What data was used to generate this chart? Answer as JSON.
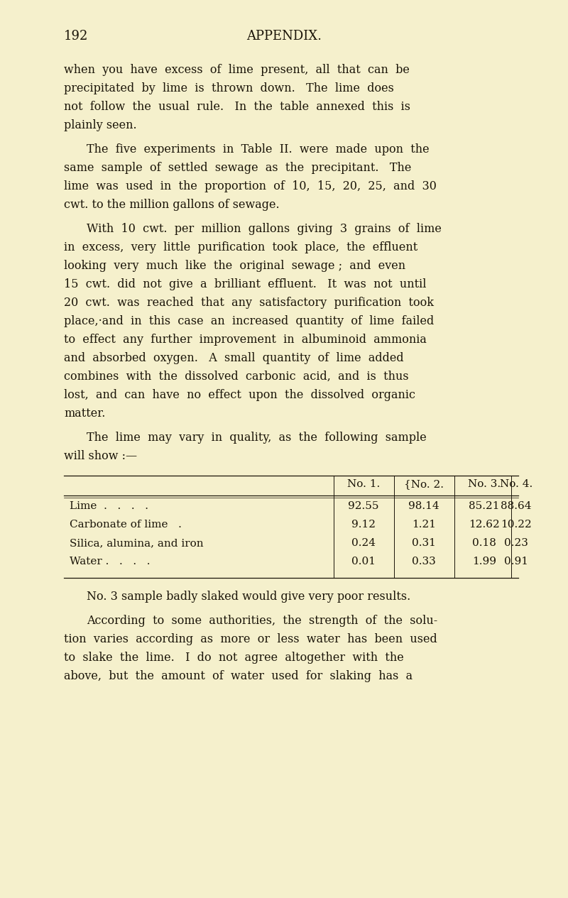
{
  "bg_color": "#f5f0cc",
  "text_color": "#1a1408",
  "table_line_color": "#1a1408",
  "page_number": "192",
  "header": "APPENDIX.",
  "font_size_body": 11.5,
  "font_size_header": 13.0,
  "para1_lines": [
    "when  you  have  excess  of  lime  present,  all  that  can  be",
    "precipitated  by  lime  is  thrown  down.   The  lime  does",
    "not  follow  the  usual  rule.   In  the  table  annexed  this  is",
    "plainly seen."
  ],
  "para2_lines": [
    "The  five  experiments  in  Table  II.  were  made  upon  the",
    "same  sample  of  settled  sewage  as  the  precipitant.   The",
    "lime  was  used  in  the  proportion  of  10,  15,  20,  25,  and  30",
    "cwt. to the million gallons of sewage."
  ],
  "para3_lines": [
    "With  10  cwt.  per  million  gallons  giving  3  grains  of  lime",
    "in  excess,  very  little  purification  took  place,  the  effluent",
    "looking  very  much  like  the  original  sewage ;  and  even",
    "15  cwt.  did  not  give  a  brilliant  effluent.   It  was  not  until",
    "20  cwt.  was  reached  that  any  satisfactory  purification  took",
    "place,·and  in  this  case  an  increased  quantity  of  lime  failed",
    "to  effect  any  further  improvement  in  albuminoid  ammonia",
    "and  absorbed  oxygen.   A  small  quantity  of  lime  added",
    "combines  with  the  dissolved  carbonic  acid,  and  is  thus",
    "lost,  and  can  have  no  effect  upon  the  dissolved  organic",
    "matter."
  ],
  "para4_lines": [
    "The  lime  may  vary  in  quality,  as  the  following  sample",
    "will show :—"
  ],
  "table_col_headers": [
    "No. 1.",
    "{No. 2.",
    "No. 3.",
    "No. 4."
  ],
  "table_rows": [
    [
      "Lime  .   .   .   .",
      "92.55",
      "98.14",
      "85.21",
      "88.64"
    ],
    [
      "Carbonate of lime   .",
      "9.12",
      "1.21",
      "12.62",
      "10.22"
    ],
    [
      "Silica, alumina, and iron",
      "0.24",
      "0.31",
      "0.18",
      "0.23"
    ],
    [
      "Water .   .   .   .",
      "0.01",
      "0.33",
      "1.99",
      "0.91"
    ]
  ],
  "post1": "No. 3 sample badly slaked would give very poor results.",
  "post2_lines": [
    "According  to  some  authorities,  the  strength  of  the  solu-",
    "tion  varies  according  as  more  or  less  water  has  been  used",
    "to  slake  the  lime.   I  do  not  agree  altogether  with  the",
    "above,  but  the  amount  of  water  used  for  slaking  has  a"
  ]
}
